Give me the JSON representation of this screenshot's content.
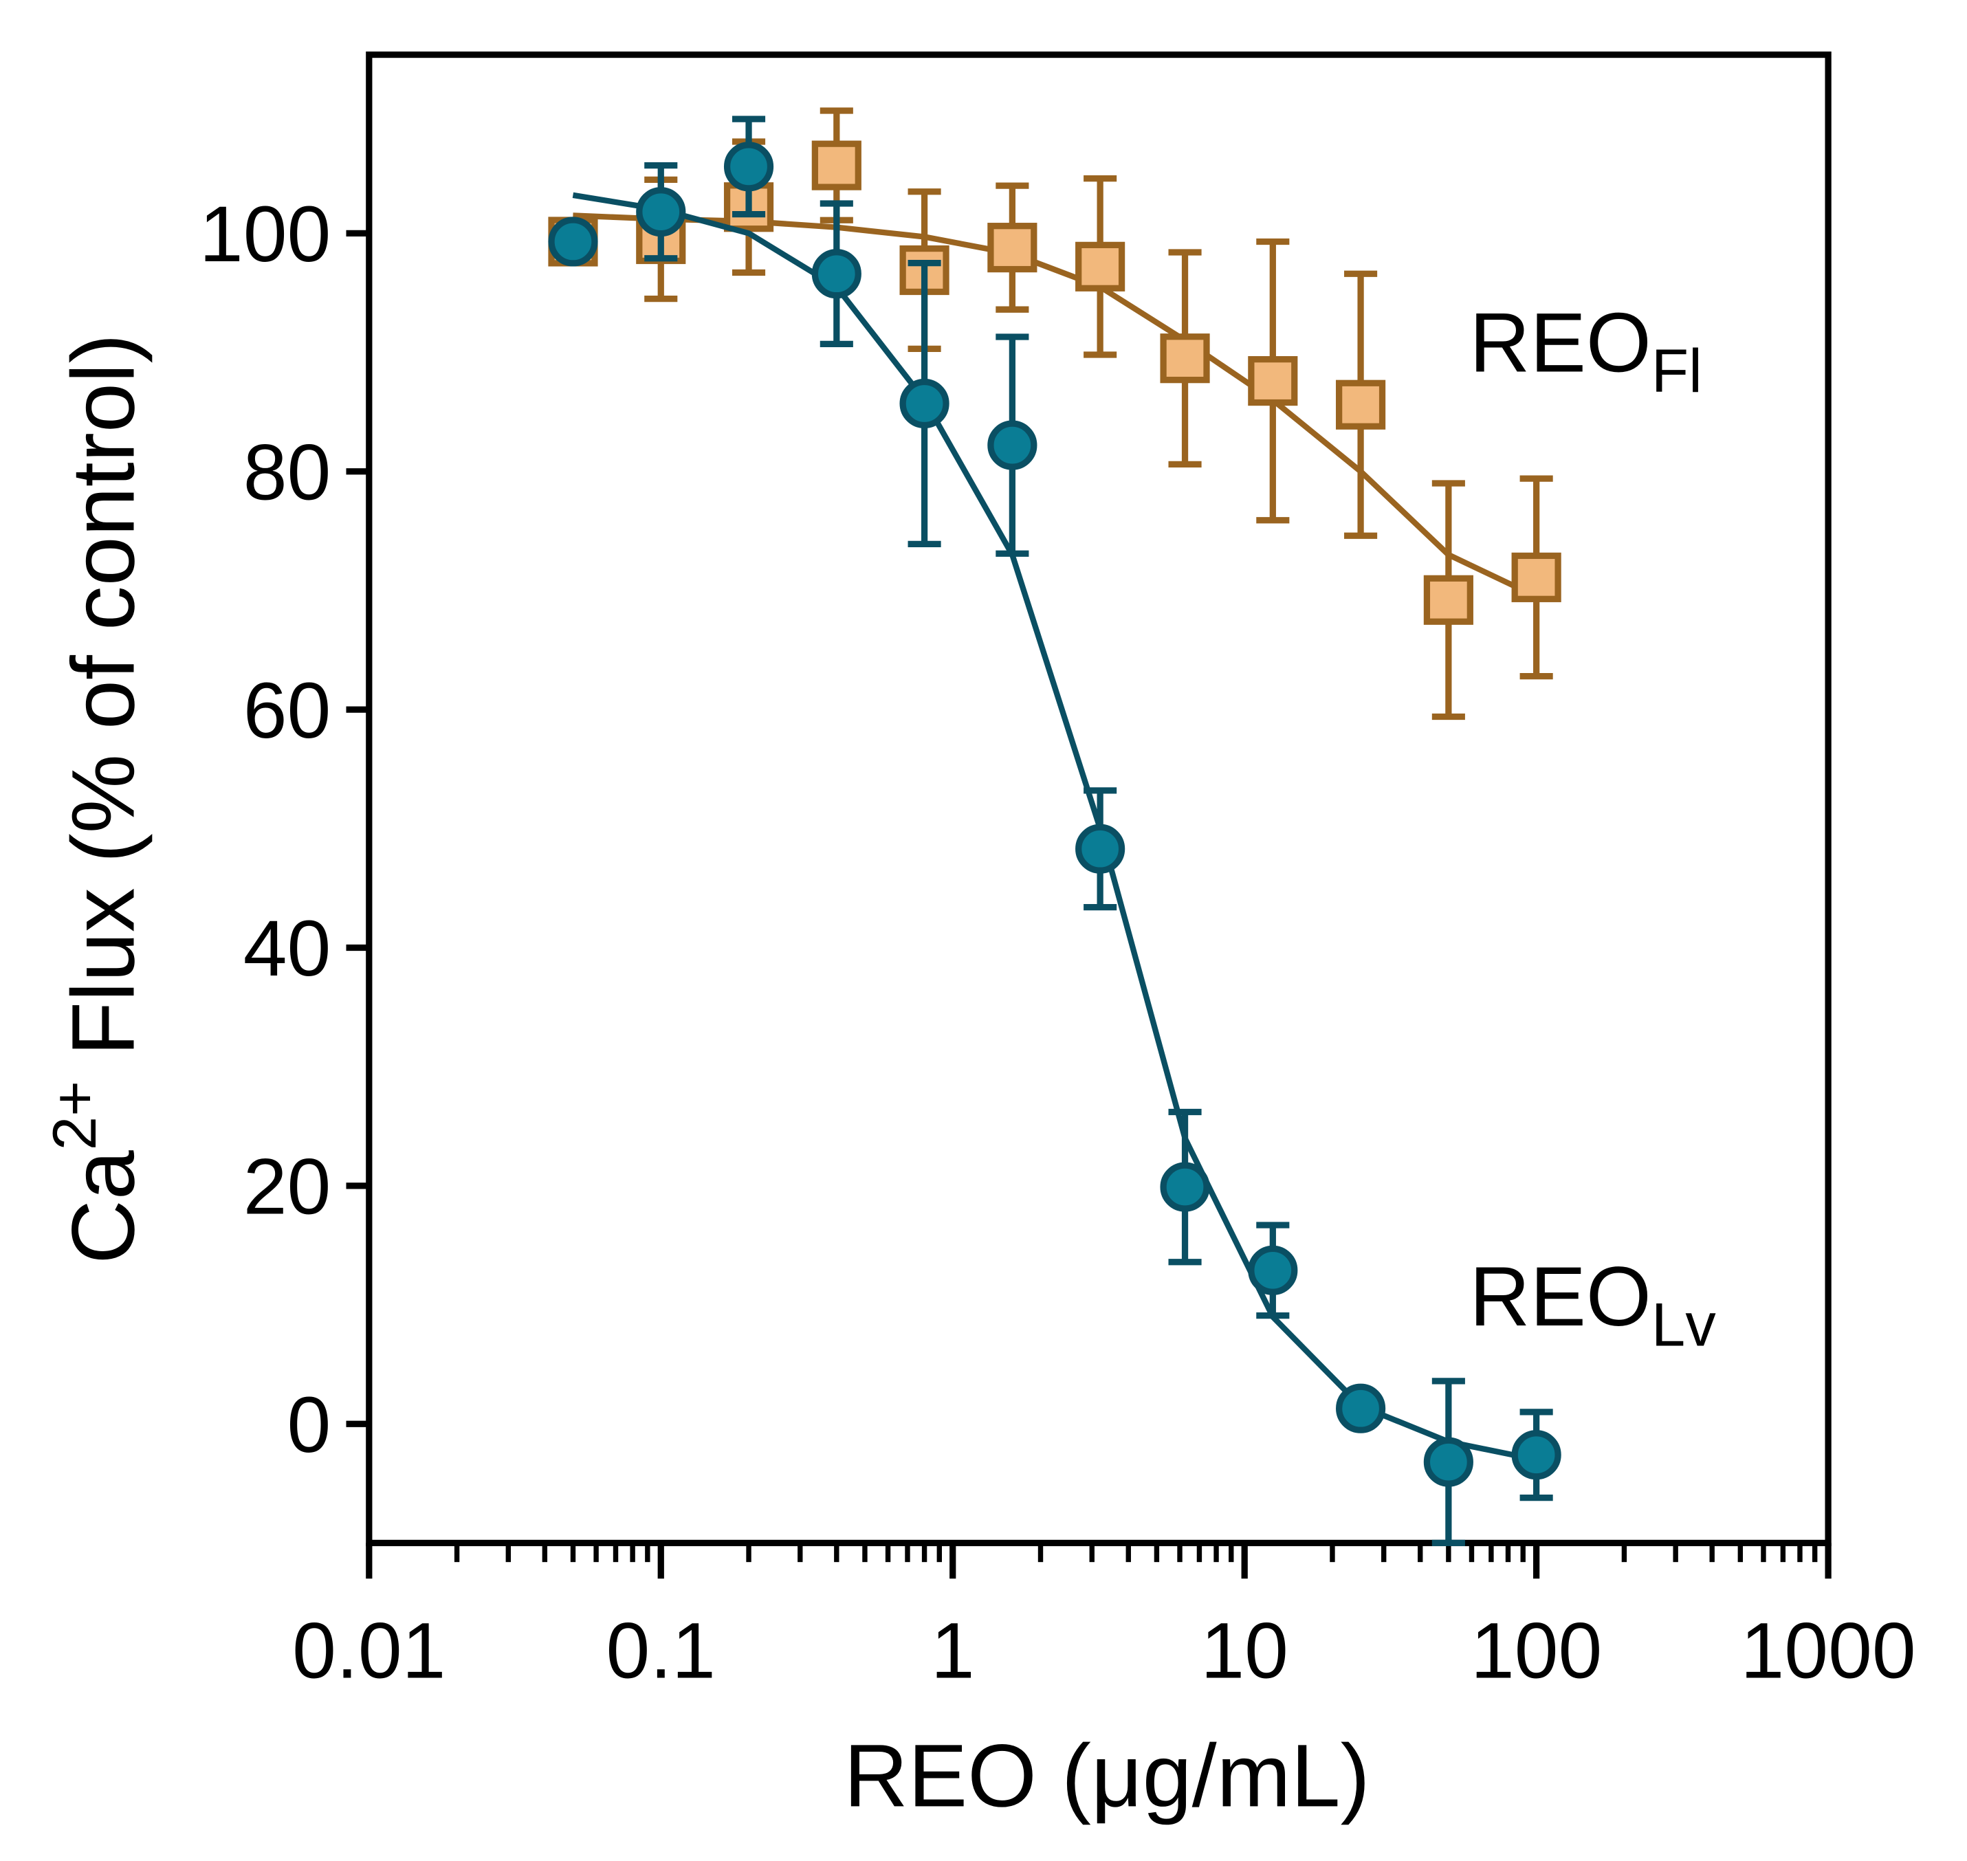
{
  "chart_data": {
    "type": "scatter",
    "x_label": "REO (μg/mL)",
    "y_label": {
      "main": "Ca",
      "sup": "2+",
      "rest": " Flux (% of control)"
    },
    "xscale": "log",
    "xlim": [
      0.01,
      1000
    ],
    "xticks": [
      0.01,
      0.1,
      1,
      10,
      100,
      1000
    ],
    "ylim": [
      -10,
      115
    ],
    "yticks": [
      0,
      20,
      40,
      60,
      80,
      100
    ],
    "series": [
      {
        "name": {
          "main": "REO",
          "sub": "Fl"
        },
        "marker": "square",
        "color": "#f2b87c",
        "edge_color": "#9a6420",
        "x": [
          0.05,
          0.1,
          0.2,
          0.4,
          0.8,
          1.6,
          3.2,
          6.25,
          12.5,
          25,
          50,
          100
        ],
        "values": [
          99.3,
          99.5,
          102.2,
          105.7,
          96.9,
          98.8,
          97.2,
          89.5,
          87.6,
          85.6,
          69.2,
          71.1
        ],
        "errors": [
          1,
          5,
          5.5,
          4.6,
          6.6,
          5.2,
          7.4,
          8.9,
          11.7,
          11,
          9.8,
          8.3
        ],
        "fit": [
          101.5,
          101.2,
          101,
          100.5,
          99.7,
          98.3,
          95.5,
          91,
          86,
          80,
          73,
          69.5
        ]
      },
      {
        "name": {
          "main": "REO",
          "sub": "Lv"
        },
        "marker": "circle",
        "color": "#0a7d95",
        "edge_color": "#0a4f63",
        "x": [
          0.05,
          0.1,
          0.2,
          0.4,
          0.8,
          1.6,
          3.2,
          6.25,
          12.5,
          25,
          50,
          100
        ],
        "values": [
          99.3,
          101.8,
          105.6,
          96.6,
          85.7,
          82.2,
          48.3,
          19.9,
          12.9,
          1.3,
          -3.2,
          -2.6
        ],
        "errors": [
          1,
          3.9,
          4,
          5.9,
          11.8,
          9.1,
          4.9,
          6.3,
          3.8,
          0.5,
          6.8,
          3.6
        ],
        "fit": [
          103.2,
          102,
          100,
          95.5,
          86,
          73,
          50,
          24,
          9,
          1.5,
          -1.5,
          -3
        ]
      }
    ]
  }
}
